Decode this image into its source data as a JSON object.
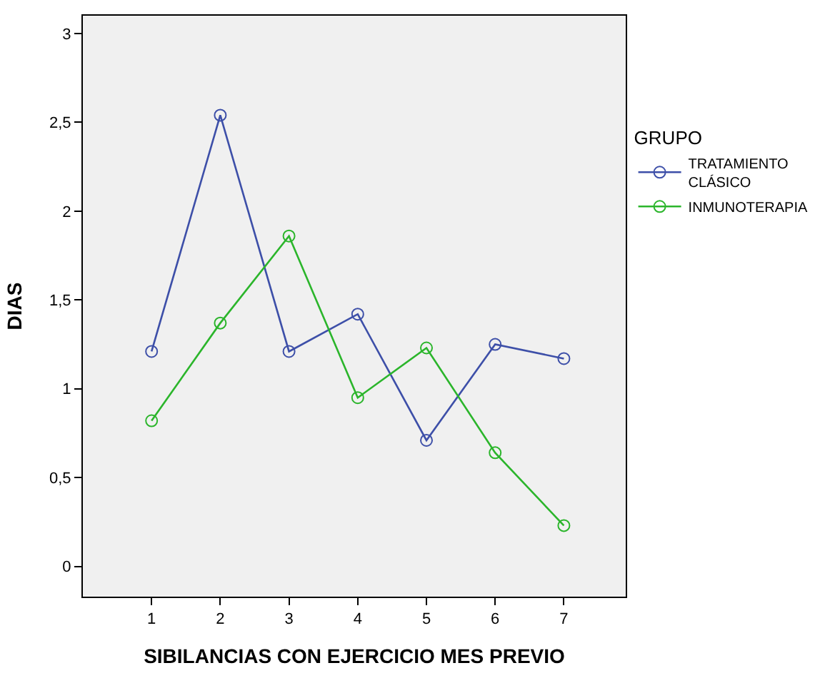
{
  "chart_data": {
    "type": "line",
    "xlabel": "SIBILANCIAS CON EJERCICIO MES PREVIO",
    "ylabel": "DIAS",
    "legend_title": "GRUPO",
    "legend": "right",
    "marker": "circle",
    "grid": false,
    "x": [
      1,
      2,
      3,
      4,
      5,
      6,
      7
    ],
    "xlim": [
      0,
      7.9
    ],
    "xticks": [
      1,
      2,
      3,
      4,
      5,
      6,
      7
    ],
    "ylim": [
      -0.17,
      3.1
    ],
    "yticks": [
      0,
      {
        "value": 0.5,
        "label": "0,5"
      },
      1,
      {
        "value": 1.5,
        "label": "1,5"
      },
      2,
      {
        "value": 2.5,
        "label": "2,5"
      },
      3
    ],
    "series": [
      {
        "name": "TRATAMIENTO CLÁSICO",
        "color": "#3d4fa8",
        "values": [
          1.21,
          2.54,
          1.21,
          1.42,
          0.71,
          1.25,
          1.17
        ]
      },
      {
        "name": "INMUNOTERAPIA",
        "color": "#2bb52b",
        "values": [
          0.82,
          1.37,
          1.86,
          0.95,
          1.23,
          0.64,
          0.23
        ]
      }
    ]
  }
}
